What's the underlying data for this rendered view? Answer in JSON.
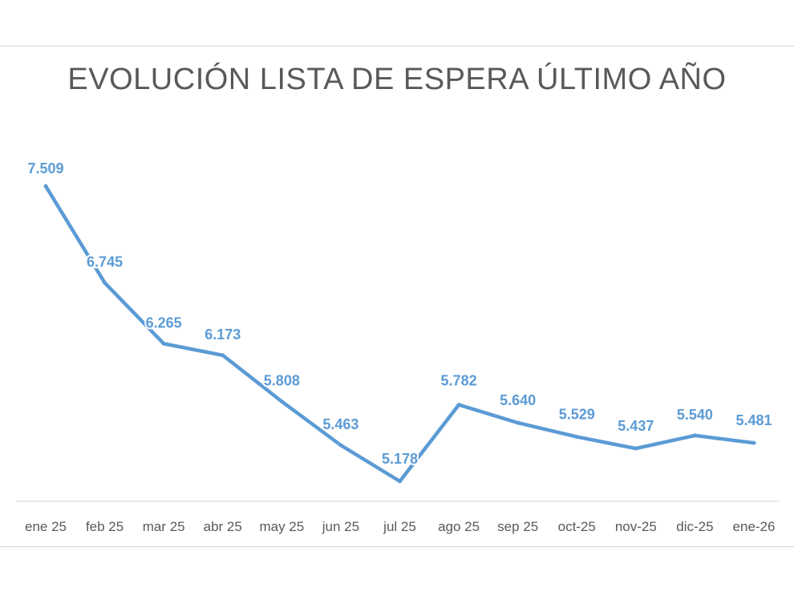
{
  "chart_data": {
    "type": "line",
    "title": "EVOLUCIÓN LISTA DE ESPERA ÚLTIMO AÑO",
    "xlabel": "",
    "ylabel": "",
    "categories": [
      "ene 25",
      "feb 25",
      "mar 25",
      "abr 25",
      "may 25",
      "jun 25",
      "jul 25",
      "ago 25",
      "sep 25",
      "oct-25",
      "nov-25",
      "dic-25",
      "ene-26"
    ],
    "series": [
      {
        "values": [
          7509,
          6745,
          6265,
          6173,
          5808,
          5463,
          5178,
          5782,
          5640,
          5529,
          5437,
          5540,
          5481
        ],
        "labels": [
          "7.509",
          "6.745",
          "6.265",
          "6.173",
          "5.808",
          "5.463",
          "5.178",
          "5.782",
          "5.640",
          "5.529",
          "5.437",
          "5.540",
          "5.481"
        ]
      }
    ],
    "grid": false,
    "legend": "none",
    "line_color": "#5b9bd5",
    "label_color": "#5b9bd5"
  }
}
